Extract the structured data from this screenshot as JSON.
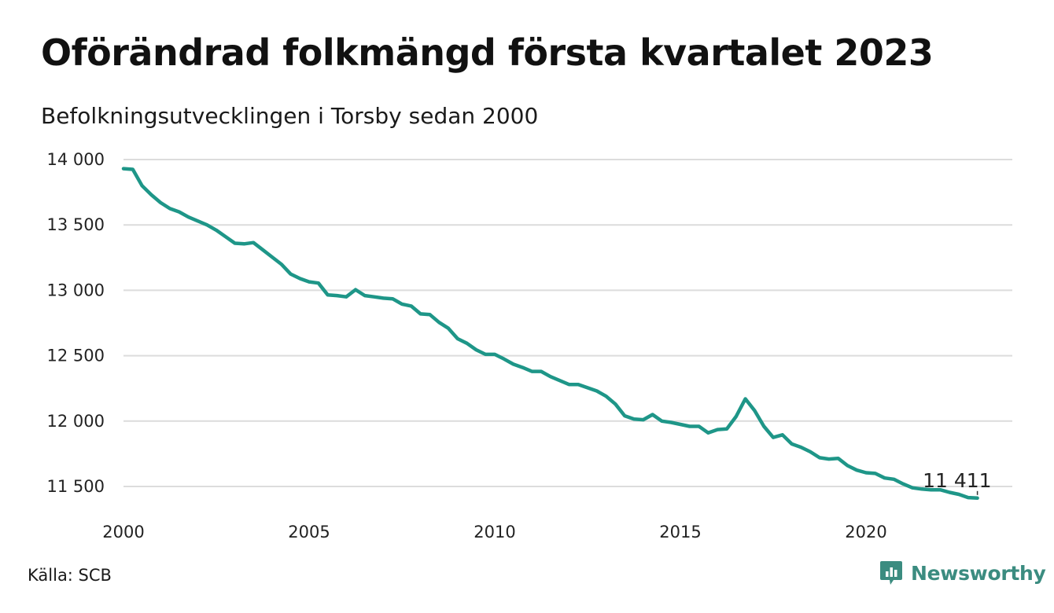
{
  "title": "Oförändrad folkmängd första kvartalet 2023",
  "subtitle": "Befolkningsutvecklingen i Torsby sedan 2000",
  "source": "Källa: SCB",
  "brand": {
    "name": "Newsworthy",
    "color": "#3b8c80"
  },
  "chart_data": {
    "type": "line",
    "title": "Oförändrad folkmängd första kvartalet 2023",
    "subtitle": "Befolkningsutvecklingen i Torsby sedan 2000",
    "xlabel": "",
    "ylabel": "",
    "xlim": [
      2000,
      2024
    ],
    "ylim": [
      11300,
      14050
    ],
    "x_ticks": [
      2000,
      2005,
      2010,
      2015,
      2020
    ],
    "x_tick_labels": [
      "2000",
      "2005",
      "2010",
      "2015",
      "2020"
    ],
    "y_ticks": [
      11500,
      12000,
      12500,
      13000,
      13500,
      14000
    ],
    "y_tick_labels": [
      "11 500",
      "12 000",
      "12 500",
      "13 000",
      "13 500",
      "14 000"
    ],
    "grid": "horizontal",
    "line_color": "#1e9688",
    "end_label": "11 411",
    "series": [
      {
        "x": [
          2000.0,
          2000.25,
          2000.5,
          2000.75,
          2001.0,
          2001.25,
          2001.5,
          2001.75,
          2002.0,
          2002.25,
          2002.5,
          2002.75,
          2003.0,
          2003.25,
          2003.5,
          2003.75,
          2004.0,
          2004.25,
          2004.5,
          2004.75,
          2005.0,
          2005.25,
          2005.5,
          2005.75,
          2006.0,
          2006.25,
          2006.5,
          2006.75,
          2007.0,
          2007.25,
          2007.5,
          2007.75,
          2008.0,
          2008.25,
          2008.5,
          2008.75,
          2009.0,
          2009.25,
          2009.5,
          2009.75,
          2010.0,
          2010.25,
          2010.5,
          2010.75,
          2011.0,
          2011.25,
          2011.5,
          2011.75,
          2012.0,
          2012.25,
          2012.5,
          2012.75,
          2013.0,
          2013.25,
          2013.5,
          2013.75,
          2014.0,
          2014.25,
          2014.5,
          2014.75,
          2015.0,
          2015.25,
          2015.5,
          2015.75,
          2016.0,
          2016.25,
          2016.5,
          2016.75,
          2017.0,
          2017.25,
          2017.5,
          2017.75,
          2018.0,
          2018.25,
          2018.5,
          2018.75,
          2019.0,
          2019.25,
          2019.5,
          2019.75,
          2020.0,
          2020.25,
          2020.5,
          2020.75,
          2021.0,
          2021.25,
          2021.5,
          2021.75,
          2022.0,
          2022.25,
          2022.5,
          2022.75,
          2023.0
        ],
        "values": [
          13930,
          13925,
          13800,
          13730,
          13670,
          13625,
          13600,
          13560,
          13530,
          13500,
          13460,
          13410,
          13360,
          13355,
          13365,
          13310,
          13255,
          13200,
          13125,
          13090,
          13065,
          13055,
          12965,
          12960,
          12950,
          13005,
          12960,
          12950,
          12940,
          12935,
          12895,
          12880,
          12820,
          12815,
          12755,
          12710,
          12630,
          12595,
          12545,
          12510,
          12510,
          12475,
          12435,
          12410,
          12380,
          12380,
          12340,
          12310,
          12280,
          12280,
          12255,
          12230,
          12190,
          12130,
          12040,
          12015,
          12010,
          12050,
          12000,
          11990,
          11975,
          11960,
          11960,
          11910,
          11935,
          11940,
          12035,
          12170,
          12080,
          11960,
          11875,
          11895,
          11825,
          11800,
          11765,
          11720,
          11710,
          11715,
          11660,
          11625,
          11605,
          11600,
          11565,
          11555,
          11520,
          11490,
          11480,
          11475,
          11475,
          11455,
          11440,
          11415,
          11411
        ]
      }
    ]
  }
}
